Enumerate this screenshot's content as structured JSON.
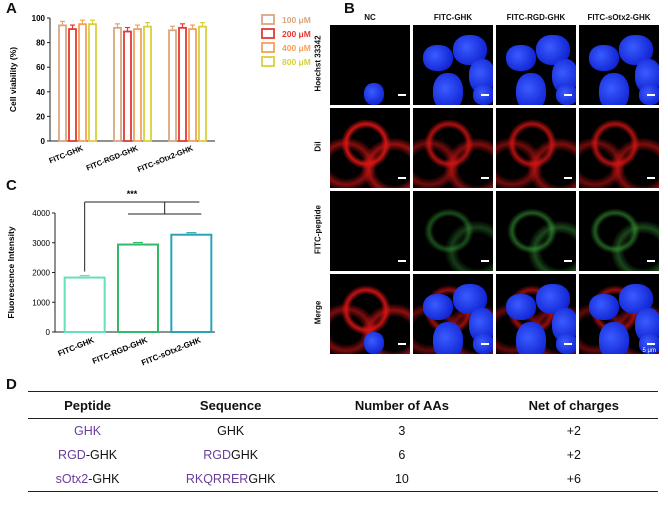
{
  "panels": {
    "a": "A",
    "b": "B",
    "c": "C",
    "d": "D"
  },
  "chart_data": [
    {
      "type": "bar",
      "ylabel": "Cell viability (%)",
      "ylim": [
        0,
        100
      ],
      "yticks": [
        "0",
        "20",
        "40",
        "60",
        "80",
        "100"
      ],
      "categories": [
        "FITC-GHK",
        "FITC-RGD-GHK",
        "FITC-sOtx2-GHK"
      ],
      "series": [
        {
          "name": "100 μM",
          "color": "#d8a77f",
          "values": [
            94,
            92,
            90
          ]
        },
        {
          "name": "200 μM",
          "color": "#e53935",
          "values": [
            91,
            89,
            92
          ]
        },
        {
          "name": "400 μM",
          "color": "#f5a05a",
          "values": [
            95,
            91,
            91
          ]
        },
        {
          "name": "800 μM",
          "color": "#d7d23b",
          "values": [
            95,
            93,
            93
          ]
        }
      ],
      "legend_position": "right"
    },
    {
      "type": "bar",
      "ylabel": "Fluorescence Intensity",
      "ylim": [
        0,
        4000
      ],
      "yticks": [
        "0",
        "1000",
        "2000",
        "3000",
        "4000"
      ],
      "categories": [
        "FITC-GHK",
        "FITC-RGD-GHK",
        "FITC-sOtx2-GHK"
      ],
      "values": [
        1830,
        2940,
        3270
      ],
      "colors": [
        "#66e0b5",
        "#33b96a",
        "#27a4b8"
      ],
      "significance": "***"
    }
  ],
  "microscopy": {
    "columns": [
      "NC",
      "FITC-GHK",
      "FITC-RGD-GHK",
      "FITC-sOtx2-GHK"
    ],
    "rows": [
      "Hoechst 33342",
      "Dil",
      "FITC-peptide",
      "Merge"
    ],
    "scale_bar": "5 μm"
  },
  "table": {
    "headers": [
      "Peptide",
      "Sequence",
      "Number of AAs",
      "Net of charges"
    ],
    "rows": [
      {
        "pep_a": "GHK",
        "pep_b": "",
        "seq_a": "",
        "seq_b": "GHK",
        "n": "3",
        "charge": "+2"
      },
      {
        "pep_a": "RGD",
        "pep_b": "-GHK",
        "seq_a": "RGD",
        "seq_b": "GHK",
        "n": "6",
        "charge": "+2"
      },
      {
        "pep_a": "sOtx2",
        "pep_b": "-GHK",
        "seq_a": "RKQRRER",
        "seq_b": "GHK",
        "n": "10",
        "charge": "+6"
      }
    ]
  }
}
